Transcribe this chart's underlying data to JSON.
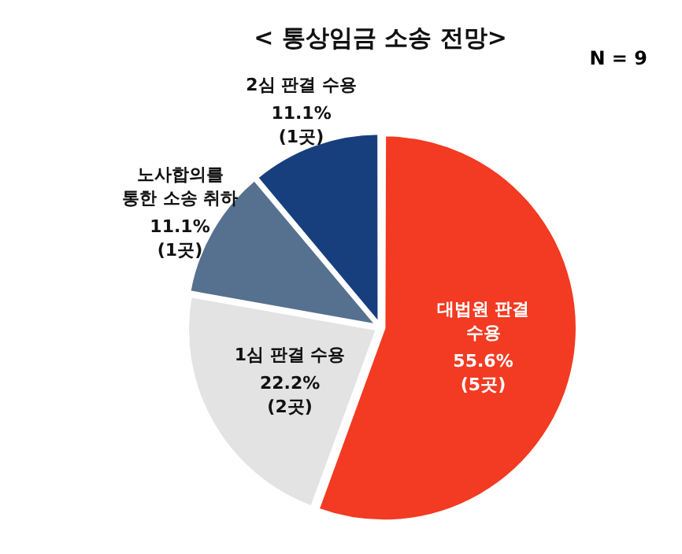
{
  "chart_data": {
    "type": "pie",
    "title": "< 통상임금 소송 전망>",
    "categories": [
      "대법원 판결\n수용",
      "1심 판결 수용",
      "노사합의를\n통한 소송 취하",
      "2심 판결 수용"
    ],
    "values": [
      55.6,
      22.2,
      11.1,
      11.1
    ],
    "colors": [
      "#f23b22",
      "#e3e3e3",
      "#56708f",
      "#173f7e"
    ],
    "value_labels": [
      "55.6%\n(5곳)",
      "22.2%\n(2곳)",
      "11.1%\n(1곳)",
      "11.1%\n(1곳)"
    ],
    "annotations": [
      "N = 9"
    ],
    "legend": false
  }
}
